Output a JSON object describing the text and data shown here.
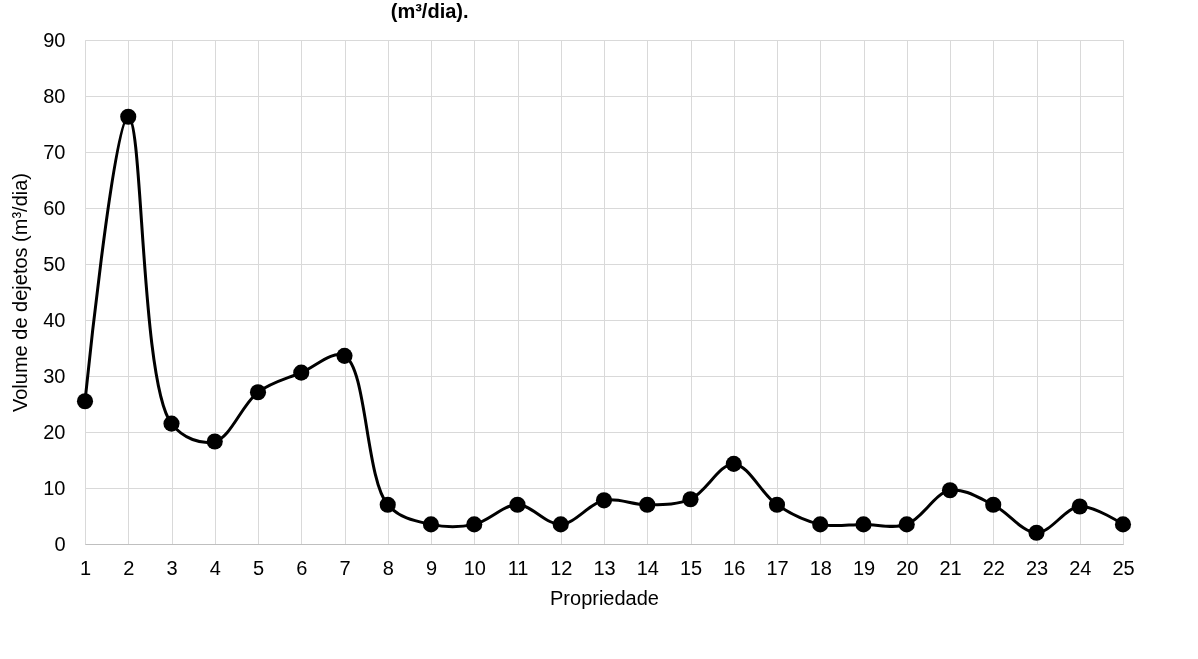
{
  "chart_data": {
    "type": "line",
    "title": "(m³/dia).",
    "xlabel": "Propriedade",
    "ylabel": "Volume de dejetos (m³/dia)",
    "x": [
      1,
      2,
      3,
      4,
      5,
      6,
      7,
      8,
      9,
      10,
      11,
      12,
      13,
      14,
      15,
      16,
      17,
      18,
      19,
      20,
      21,
      22,
      23,
      24,
      25
    ],
    "series": [
      {
        "color": "#000000",
        "values": [
          25.5,
          76.3,
          21.5,
          18.3,
          27.1,
          30.6,
          33.6,
          7,
          3.5,
          3.5,
          7,
          3.5,
          7.8,
          7,
          8,
          14.3,
          7,
          3.5,
          3.5,
          3.5,
          9.6,
          7,
          2,
          6.7,
          3.5
        ]
      }
    ],
    "xlim": [
      1,
      25
    ],
    "xticks": [
      1,
      2,
      3,
      4,
      5,
      6,
      7,
      8,
      9,
      10,
      11,
      12,
      13,
      14,
      15,
      16,
      17,
      18,
      19,
      20,
      21,
      22,
      23,
      24,
      25
    ],
    "ylim": [
      0,
      90
    ],
    "yticks": [
      0,
      10,
      20,
      30,
      40,
      50,
      60,
      70,
      80,
      90
    ],
    "grid": true,
    "marker": "circle",
    "line_style": "solid",
    "legend": false
  }
}
